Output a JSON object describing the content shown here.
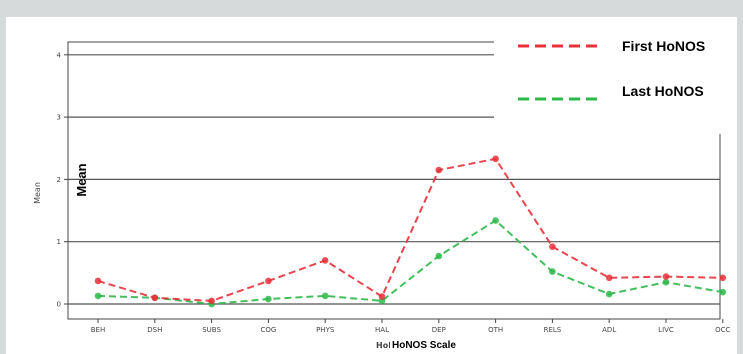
{
  "chart_data": {
    "type": "line",
    "categories": [
      "BEH",
      "DSH",
      "SUBS",
      "COG",
      "PHYS",
      "HAL",
      "DEP",
      "OTH",
      "RELS",
      "ADL",
      "LIVC",
      "OCC"
    ],
    "series": [
      {
        "name": "First HoNOS",
        "color": "#e8303a",
        "values": [
          0.37,
          0.1,
          0.05,
          0.37,
          0.7,
          0.12,
          2.15,
          2.33,
          0.92,
          0.42,
          0.44,
          0.42
        ]
      },
      {
        "name": "Last HoNOS",
        "color": "#2db84a",
        "values": [
          0.13,
          0.1,
          0.0,
          0.08,
          0.13,
          0.05,
          0.77,
          1.34,
          0.52,
          0.16,
          0.35,
          0.19
        ]
      }
    ],
    "ylim": [
      0,
      4
    ],
    "yticks": [
      "0",
      "1",
      "2",
      "3",
      "4"
    ],
    "ylabel_original": "Mean",
    "ylabel_overlay": "Mean",
    "xlabel_original": "HoN",
    "xlabel_overlay": "HoNOS Scale",
    "grid": true,
    "legend_position": "top-right"
  }
}
